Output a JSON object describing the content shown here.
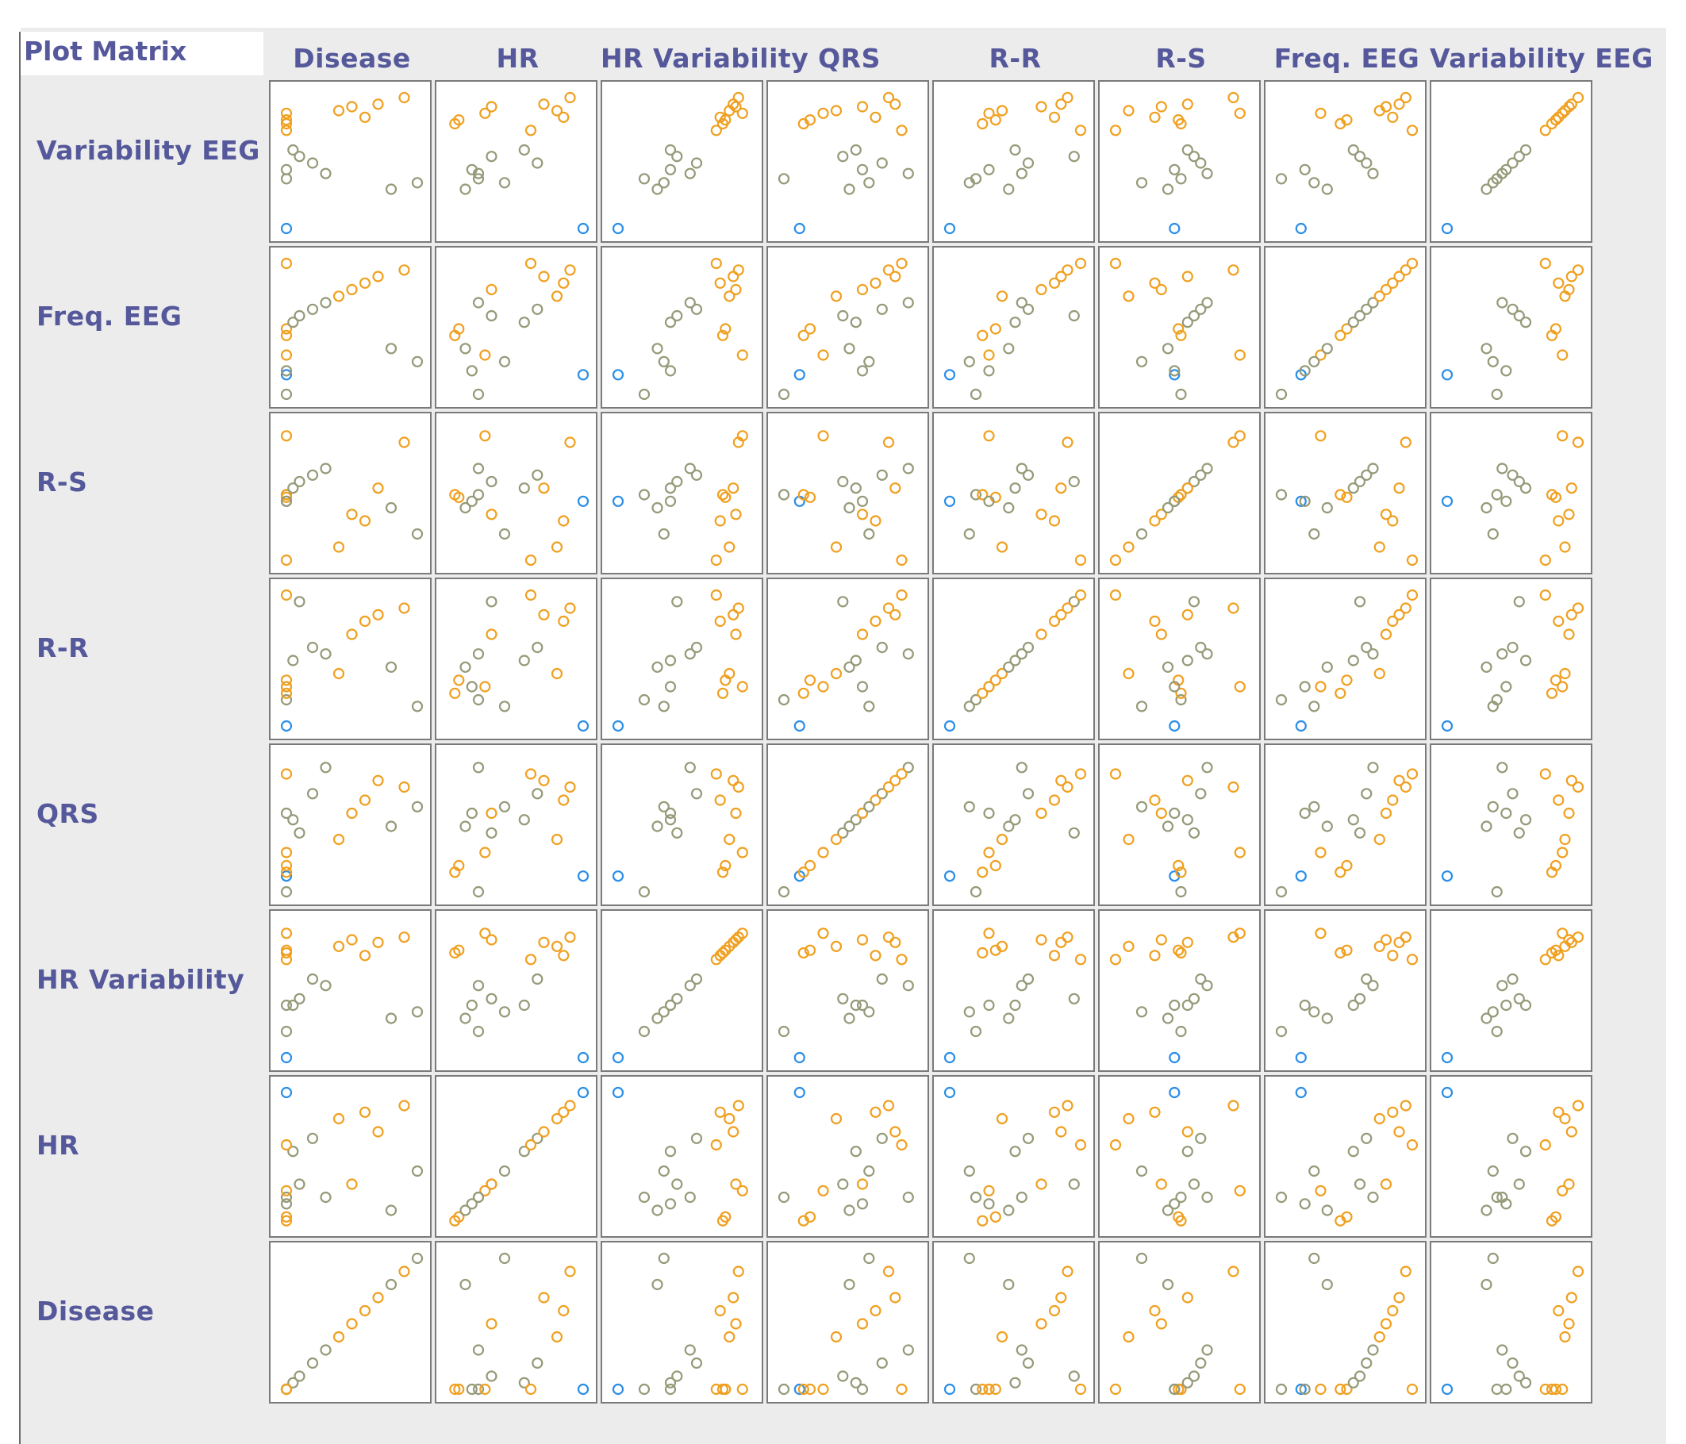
{
  "title": "Plot Matrix",
  "variables": [
    "Disease",
    "HR",
    "HR Variability",
    "QRS",
    "R-R",
    "R-S",
    "Freq. EEG",
    "Variability EEG"
  ],
  "row_order": [
    "Variability EEG",
    "Freq. EEG",
    "R-S",
    "R-R",
    "QRS",
    "HR Variability",
    "HR",
    "Disease"
  ],
  "colors": {
    "orange": "#f0a020",
    "olive": "#959a78",
    "blue": "#2a8ee8",
    "label": "#55589a",
    "panel_background": "#ececec",
    "cell_border": "#7a7a7a"
  },
  "chart_data": {
    "type": "scatter",
    "title": "Plot Matrix",
    "subtype": "scatter-plot-matrix",
    "variables": [
      "Disease",
      "HR",
      "HR Variability",
      "QRS",
      "R-R",
      "R-S",
      "Freq. EEG",
      "Variability EEG"
    ],
    "value_range": [
      0,
      1
    ],
    "grid": false,
    "legend": "none",
    "series_colors": {
      "orange": "#f0a020",
      "olive": "#959a78",
      "blue": "#2a8ee8"
    },
    "observations": [
      {
        "id": 1,
        "color": "blue",
        "values": {
          "Disease": 0.0,
          "HR": 1.0,
          "HR Variability": 0.0,
          "QRS": 0.12,
          "R-R": 0.0,
          "R-S": 0.45,
          "Freq. EEG": 0.15,
          "Variability EEG": 0.0
        }
      },
      {
        "id": 2,
        "color": "olive",
        "values": {
          "Disease": 0.0,
          "HR": 0.2,
          "HR Variability": 0.2,
          "QRS": 0.0,
          "R-R": 0.2,
          "R-S": 0.5,
          "Freq. EEG": 0.0,
          "Variability EEG": 0.38
        }
      },
      {
        "id": 3,
        "color": "orange",
        "values": {
          "Disease": 0.0,
          "HR": 0.02,
          "HR Variability": 0.8,
          "QRS": 0.15,
          "R-R": 0.25,
          "R-S": 0.5,
          "Freq. EEG": 0.45,
          "Variability EEG": 0.8
        }
      },
      {
        "id": 4,
        "color": "orange",
        "values": {
          "Disease": 0.0,
          "HR": 0.05,
          "HR Variability": 0.82,
          "QRS": 0.2,
          "R-R": 0.35,
          "R-S": 0.48,
          "Freq. EEG": 0.5,
          "Variability EEG": 0.83
        }
      },
      {
        "id": 5,
        "color": "olive",
        "values": {
          "Disease": 0.0,
          "HR": 0.15,
          "HR Variability": 0.4,
          "QRS": 0.6,
          "R-R": 0.3,
          "R-S": 0.45,
          "Freq. EEG": 0.18,
          "Variability EEG": 0.45
        }
      },
      {
        "id": 6,
        "color": "orange",
        "values": {
          "Disease": 0.0,
          "HR": 0.25,
          "HR Variability": 0.95,
          "QRS": 0.3,
          "R-R": 0.3,
          "R-S": 0.95,
          "Freq. EEG": 0.3,
          "Variability EEG": 0.88
        }
      },
      {
        "id": 7,
        "color": "olive",
        "values": {
          "Disease": 0.05,
          "HR": 0.55,
          "HR Variability": 0.4,
          "QRS": 0.55,
          "R-R": 0.5,
          "R-S": 0.55,
          "Freq. EEG": 0.55,
          "Variability EEG": 0.6
        }
      },
      {
        "id": 8,
        "color": "olive",
        "values": {
          "Disease": 0.1,
          "HR": 0.3,
          "HR Variability": 0.45,
          "QRS": 0.45,
          "R-R": 0.95,
          "R-S": 0.6,
          "Freq. EEG": 0.6,
          "Variability EEG": 0.55
        }
      },
      {
        "id": 9,
        "color": "olive",
        "values": {
          "Disease": 0.2,
          "HR": 0.65,
          "HR Variability": 0.6,
          "QRS": 0.75,
          "R-R": 0.6,
          "R-S": 0.65,
          "Freq. EEG": 0.65,
          "Variability EEG": 0.5
        }
      },
      {
        "id": 10,
        "color": "olive",
        "values": {
          "Disease": 0.3,
          "HR": 0.2,
          "HR Variability": 0.55,
          "QRS": 0.95,
          "R-R": 0.55,
          "R-S": 0.7,
          "Freq. EEG": 0.7,
          "Variability EEG": 0.42
        }
      },
      {
        "id": 11,
        "color": "orange",
        "values": {
          "Disease": 0.4,
          "HR": 0.8,
          "HR Variability": 0.85,
          "QRS": 0.4,
          "R-R": 0.4,
          "R-S": 0.1,
          "Freq. EEG": 0.75,
          "Variability EEG": 0.9
        }
      },
      {
        "id": 12,
        "color": "orange",
        "values": {
          "Disease": 0.5,
          "HR": 0.3,
          "HR Variability": 0.9,
          "QRS": 0.6,
          "R-R": 0.7,
          "R-S": 0.35,
          "Freq. EEG": 0.8,
          "Variability EEG": 0.93
        }
      },
      {
        "id": 13,
        "color": "orange",
        "values": {
          "Disease": 0.6,
          "HR": 0.85,
          "HR Variability": 0.78,
          "QRS": 0.7,
          "R-R": 0.8,
          "R-S": 0.3,
          "Freq. EEG": 0.85,
          "Variability EEG": 0.85
        }
      },
      {
        "id": 14,
        "color": "orange",
        "values": {
          "Disease": 0.7,
          "HR": 0.7,
          "HR Variability": 0.88,
          "QRS": 0.85,
          "R-R": 0.85,
          "R-S": 0.55,
          "Freq. EEG": 0.9,
          "Variability EEG": 0.95
        }
      },
      {
        "id": 15,
        "color": "olive",
        "values": {
          "Disease": 0.8,
          "HR": 0.1,
          "HR Variability": 0.3,
          "QRS": 0.5,
          "R-R": 0.45,
          "R-S": 0.4,
          "Freq. EEG": 0.35,
          "Variability EEG": 0.3
        }
      },
      {
        "id": 16,
        "color": "orange",
        "values": {
          "Disease": 0.9,
          "HR": 0.9,
          "HR Variability": 0.92,
          "QRS": 0.8,
          "R-R": 0.9,
          "R-S": 0.9,
          "Freq. EEG": 0.95,
          "Variability EEG": 1.0
        }
      },
      {
        "id": 17,
        "color": "olive",
        "values": {
          "Disease": 1.0,
          "HR": 0.4,
          "HR Variability": 0.35,
          "QRS": 0.65,
          "R-R": 0.15,
          "R-S": 0.2,
          "Freq. EEG": 0.25,
          "Variability EEG": 0.35
        }
      },
      {
        "id": 18,
        "color": "orange",
        "values": {
          "Disease": 0.0,
          "HR": 0.6,
          "HR Variability": 0.75,
          "QRS": 0.9,
          "R-R": 1.0,
          "R-S": 0.0,
          "Freq. EEG": 1.0,
          "Variability EEG": 0.75
        }
      }
    ]
  }
}
